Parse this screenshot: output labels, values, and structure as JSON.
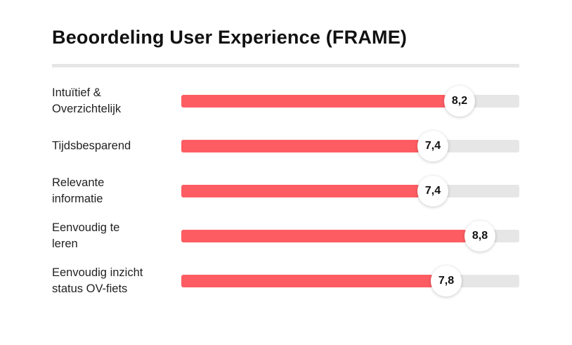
{
  "chart_data": {
    "type": "bar",
    "orientation": "horizontal",
    "title": "Beoordeling User Experience (FRAME)",
    "categories": [
      "Intuïtief &\nOverzichtelijk",
      "Tijdsbesparend",
      "Relevante\ninformatie",
      "Eenvoudig te\nleren",
      "Eenvoudig inzicht\nstatus OV-fiets"
    ],
    "values": [
      8.2,
      7.4,
      7.4,
      8.8,
      7.8
    ],
    "value_labels": [
      "8,2",
      "7,4",
      "7,4",
      "8,8",
      "7,8"
    ],
    "xlim": [
      0,
      10
    ],
    "grid": false,
    "legend": "none",
    "colors": {
      "bar": "#fd5d62",
      "track": "#e6e6e6",
      "divider": "#e6e6e6",
      "text": "#111111"
    }
  }
}
